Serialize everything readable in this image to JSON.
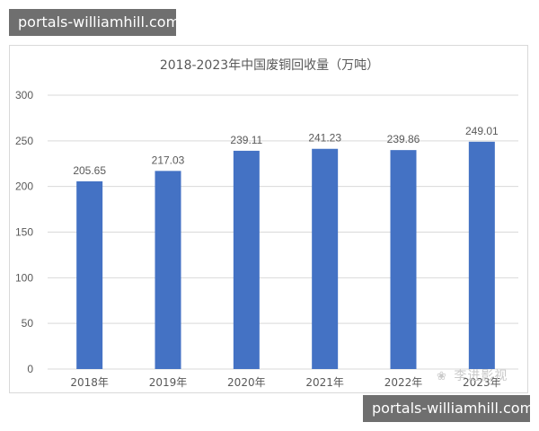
{
  "watermarks": {
    "top": "portals-williamhill.com",
    "bottom": "portals-williamhill.com"
  },
  "signature": {
    "icon": "wechat-icon",
    "text": "李进影视"
  },
  "chart_data": {
    "type": "bar",
    "title": "2018-2023年中国废铜回收量（万吨）",
    "categories": [
      "2018年",
      "2019年",
      "2020年",
      "2021年",
      "2022年",
      "2023年"
    ],
    "values": [
      205.65,
      217.03,
      239.11,
      241.23,
      239.86,
      249.01
    ],
    "data_labels": [
      "205.65",
      "217.03",
      "239.11",
      "241.23",
      "239.86",
      "249.01"
    ],
    "y_ticks": [
      "0",
      "50",
      "100",
      "150",
      "200",
      "250",
      "300"
    ],
    "ylim": [
      0,
      300
    ],
    "grid": true,
    "bar_color": "#4472c4",
    "grid_color": "#d9d9d9",
    "text_color": "#595959",
    "legend": "none"
  }
}
